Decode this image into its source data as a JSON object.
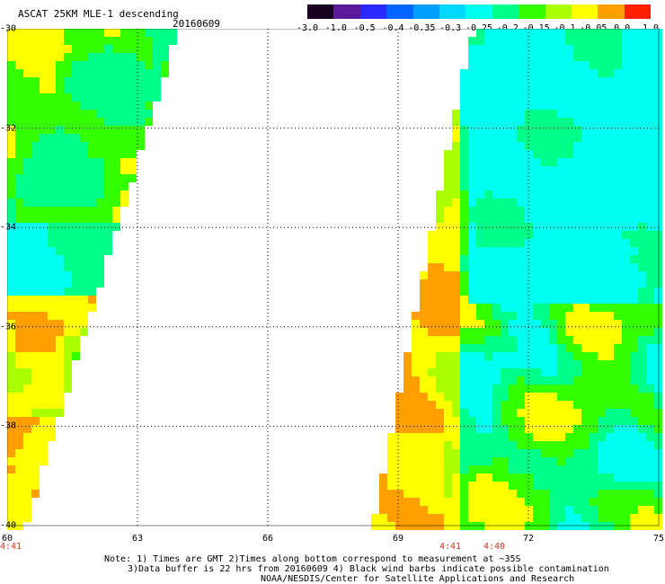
{
  "header": {
    "title": "ASCAT 25KM MLE-1 descending",
    "date": "20160609"
  },
  "colorbar": {
    "labels": [
      "-3.0",
      "-1.0",
      "-0.5",
      "-0.4",
      "-0.35",
      "-0.3",
      "-0.25",
      "-0.2",
      "-0.15",
      "-0.1",
      "-0.05",
      "0.0",
      "1.0"
    ],
    "colors": [
      "#1a0020",
      "#5a1a9a",
      "#2a2aff",
      "#0066ff",
      "#009eff",
      "#00d8ff",
      "#00ffee",
      "#00ff88",
      "#33ff00",
      "#aaff00",
      "#ffff00",
      "#ffa000",
      "#ff2000"
    ]
  },
  "map": {
    "lon_range": [
      60,
      75
    ],
    "lat_range": [
      -40,
      -30
    ],
    "x_ticks": [
      "60",
      "63",
      "66",
      "69",
      "72",
      "75"
    ],
    "y_ticks": [
      "-30",
      "-32",
      "-34",
      "-36",
      "-38",
      "-40"
    ],
    "swath_times": [
      "4:41",
      "4:41",
      "4:40"
    ]
  },
  "notes": {
    "line1": "Note: 1) Times are GMT 2)Times along bottom correspond to measurement at ~35S",
    "line2": "3)Data buffer is 22 hrs from 20160609 4) Black wind barbs indicate possible contamination",
    "line3": "NOAA/NESDIS/Center for Satellite Applications and Research"
  }
}
